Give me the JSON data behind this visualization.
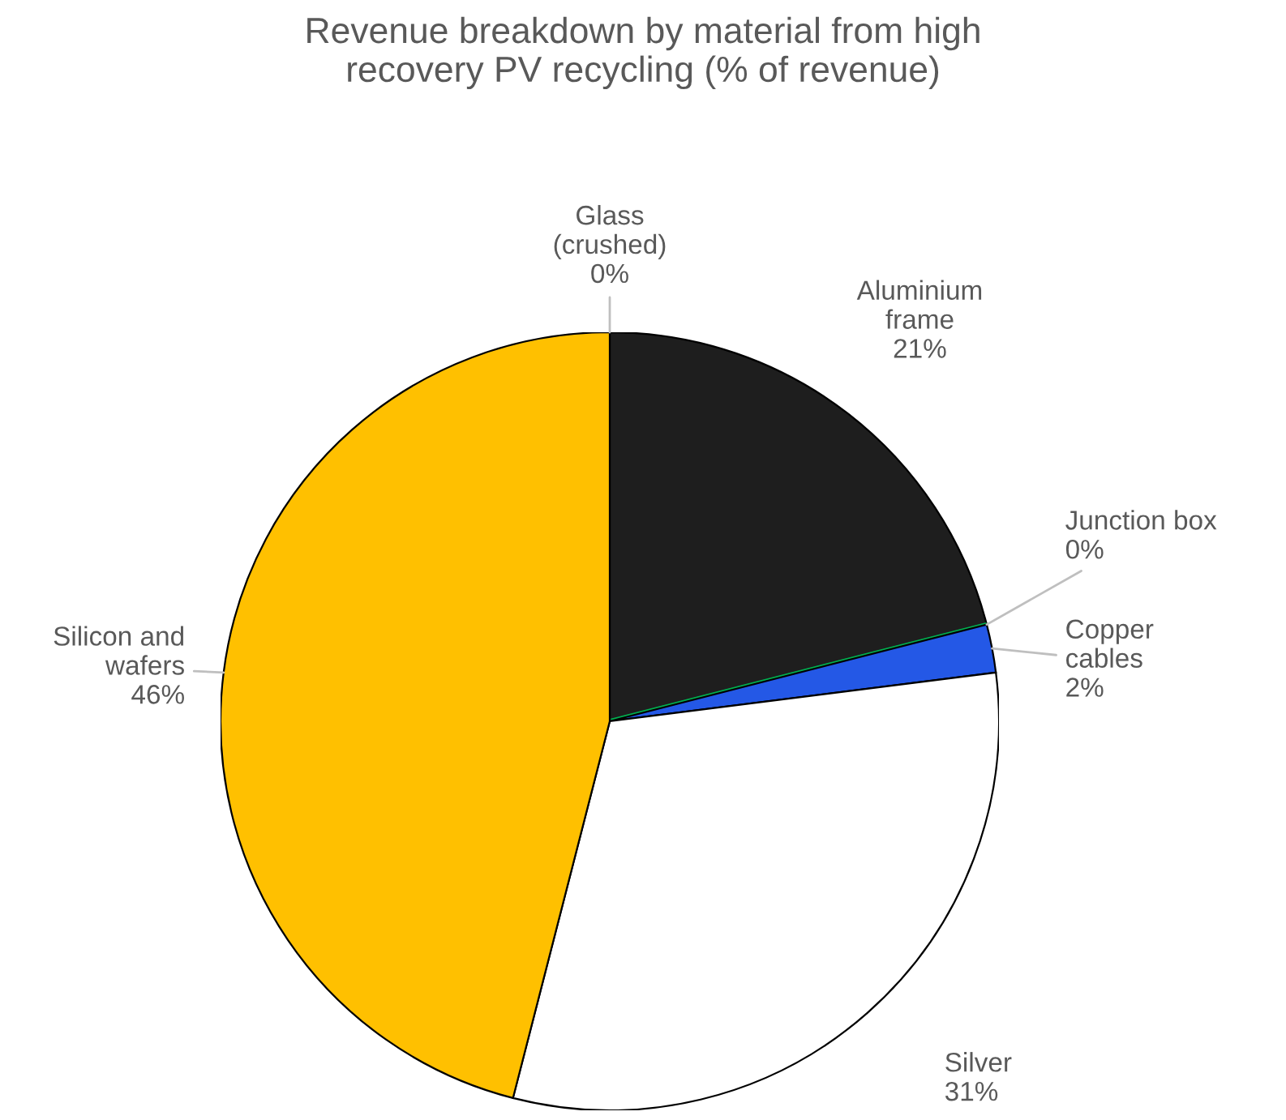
{
  "chart_data": {
    "type": "pie",
    "title": "Revenue breakdown by material from high\nrecovery PV recycling (% of revenue)",
    "categories": [
      "Glass\n(crushed)",
      "Aluminium\nframe",
      "Junction box",
      "Copper\ncables",
      "Silver",
      "Silicon and\nwafers"
    ],
    "values": [
      0,
      21,
      0,
      2,
      31,
      46
    ],
    "value_labels": [
      "0%",
      "21%",
      "0%",
      "2%",
      "31%",
      "46%"
    ],
    "colors": [
      "#a6a6a6",
      "#1e1e1e",
      "#00b050",
      "#2458e6",
      "#ffffff",
      "#ffc000"
    ],
    "legend": false
  }
}
